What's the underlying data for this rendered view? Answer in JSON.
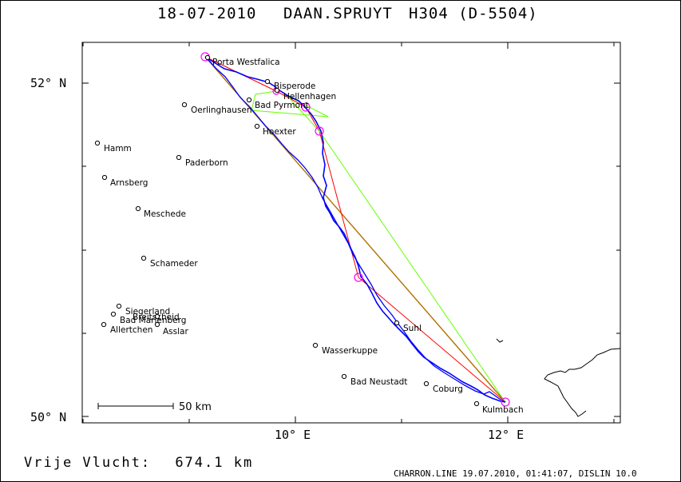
{
  "header": {
    "date": "18-07-2010",
    "pilot": "DAAN.SPRUYT",
    "glider": "H304 (D-5504)"
  },
  "footer": {
    "distance_label": "Vrije Vlucht:",
    "distance_value": "674.1 km",
    "credit": "CHARRON.LINE 19.07.2010, 01:41:07, DISLIN 10.0"
  },
  "map": {
    "lat_labels": [
      "52° N",
      "50° N"
    ],
    "lon_labels": [
      "10° E",
      "12° E"
    ],
    "scale_bar": "50 km",
    "colors": {
      "track": "#0000ff",
      "turnpoint": "#ff00ff",
      "leg_red": "#ff0000",
      "leg_green": "#66ff00",
      "leg_brown": "#b07000"
    },
    "places": [
      {
        "name": "Porta Westfalica"
      },
      {
        "name": "Bisperode"
      },
      {
        "name": "Hellenhagen"
      },
      {
        "name": "Bad Pyrmont"
      },
      {
        "name": "Oerlinghausen"
      },
      {
        "name": "Hoexter"
      },
      {
        "name": "Hamm"
      },
      {
        "name": "Paderborn"
      },
      {
        "name": "Arnsberg"
      },
      {
        "name": "Meschede"
      },
      {
        "name": "Schameder"
      },
      {
        "name": "Siegerland"
      },
      {
        "name": "Breitscheid"
      },
      {
        "name": "Bad Marienberg"
      },
      {
        "name": "Allertchen"
      },
      {
        "name": "Asslar"
      },
      {
        "name": "Suhl"
      },
      {
        "name": "Wasserkuppe"
      },
      {
        "name": "Bad Neustadt"
      },
      {
        "name": "Coburg"
      },
      {
        "name": "Kulmbach"
      }
    ]
  }
}
